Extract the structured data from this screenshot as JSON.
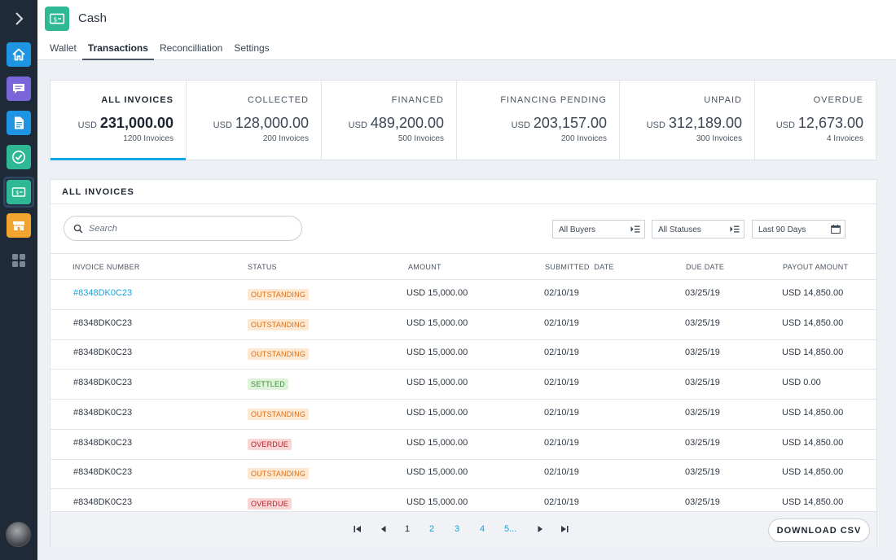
{
  "app": {
    "title": "Cash",
    "brand_color": "#2fb894",
    "accent_color": "#12a6e4",
    "rail_items": [
      {
        "icon": "home-icon",
        "color": "#1d95e3"
      },
      {
        "icon": "messages-icon",
        "color": "#7a66d9"
      },
      {
        "icon": "document-icon",
        "color": "#1d95e3"
      },
      {
        "icon": "checkmark-icon",
        "color": "#2fb894"
      },
      {
        "icon": "cash-icon",
        "color": "#2fb894"
      },
      {
        "icon": "store-icon",
        "color": "#f0a531"
      },
      {
        "icon": "apps-grid-icon",
        "color": "#6d7886"
      }
    ]
  },
  "tabs": [
    "Wallet",
    "Transactions",
    "Reconcilliation",
    "Settings"
  ],
  "active_tab": "Transactions",
  "summary": [
    {
      "label": "ALL INVOICES",
      "currency": "USD",
      "amount": "231,000.00",
      "count": "1200 Invoices",
      "active": true
    },
    {
      "label": "COLLECTED",
      "currency": "USD",
      "amount": "128,000.00",
      "count": "200 Invoices"
    },
    {
      "label": "FINANCED",
      "currency": "USD",
      "amount": "489,200.00",
      "count": "500 Invoices"
    },
    {
      "label": "FINANCING PENDING",
      "currency": "USD",
      "amount": "203,157.00",
      "count": "200 Invoices"
    },
    {
      "label": "UNPAID",
      "currency": "USD",
      "amount": "312,189.00",
      "count": "300 Invoices"
    },
    {
      "label": "OVERDUE",
      "currency": "USD",
      "amount": "12,673.00",
      "count": "4 Invoices"
    }
  ],
  "panel": {
    "title": "ALL INVOICES",
    "search_placeholder": "Search",
    "filters": {
      "buyers": "All Buyers",
      "statuses": "All Statuses",
      "date_range": "Last 90 Days"
    }
  },
  "table": {
    "columns": [
      "INVOICE NUMBER",
      "STATUS",
      "AMOUNT",
      "SUBMITTED  DATE",
      "DUE DATE",
      "PAYOUT AMOUNT"
    ],
    "rows": [
      {
        "invoice": "#8348DK0C23",
        "status": "OUTSTANDING",
        "amount": "USD 15,000.00",
        "submitted": "02/10/19",
        "due": "03/25/19",
        "payout": "USD 14,850.00",
        "link": true
      },
      {
        "invoice": "#8348DK0C23",
        "status": "OUTSTANDING",
        "amount": "USD 15,000.00",
        "submitted": "02/10/19",
        "due": "03/25/19",
        "payout": "USD 14,850.00"
      },
      {
        "invoice": "#8348DK0C23",
        "status": "OUTSTANDING",
        "amount": "USD 15,000.00",
        "submitted": "02/10/19",
        "due": "03/25/19",
        "payout": "USD 14,850.00"
      },
      {
        "invoice": "#8348DK0C23",
        "status": "SETTLED",
        "amount": "USD 15,000.00",
        "submitted": "02/10/19",
        "due": "03/25/19",
        "payout": "USD 0.00"
      },
      {
        "invoice": "#8348DK0C23",
        "status": "OUTSTANDING",
        "amount": "USD 15,000.00",
        "submitted": "02/10/19",
        "due": "03/25/19",
        "payout": "USD 14,850.00"
      },
      {
        "invoice": "#8348DK0C23",
        "status": "OVERDUE",
        "amount": "USD 15,000.00",
        "submitted": "02/10/19",
        "due": "03/25/19",
        "payout": "USD 14,850.00"
      },
      {
        "invoice": "#8348DK0C23",
        "status": "OUTSTANDING",
        "amount": "USD 15,000.00",
        "submitted": "02/10/19",
        "due": "03/25/19",
        "payout": "USD 14,850.00"
      },
      {
        "invoice": "#8348DK0C23",
        "status": "OVERDUE",
        "amount": "USD 15,000.00",
        "submitted": "02/10/19",
        "due": "03/25/19",
        "payout": "USD 14,850.00"
      }
    ]
  },
  "pagination": {
    "current": "1",
    "pages": [
      "2",
      "3",
      "4",
      "5..."
    ]
  },
  "download_label": "DOWNLOAD CSV"
}
